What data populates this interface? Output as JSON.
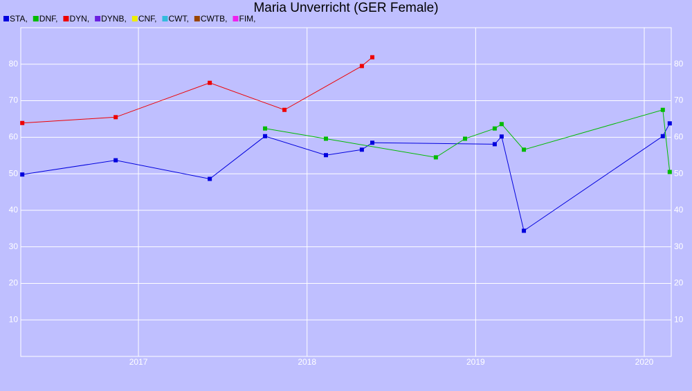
{
  "chart_data": {
    "type": "line",
    "title": "Maria Unverricht (GER Female)",
    "xlim": [
      2016.302,
      2020.16
    ],
    "xticks": [
      2017,
      2018,
      2019,
      2020
    ],
    "ylim": [
      0,
      90
    ],
    "yticks": [
      10,
      20,
      30,
      40,
      50,
      60,
      70,
      80
    ],
    "grid": true,
    "series": [
      {
        "name": "STA,",
        "color": "#0000dd",
        "x": [
          2016.311,
          2016.865,
          2017.423,
          2017.751,
          2018.112,
          2018.325,
          2018.387,
          2019.113,
          2019.154,
          2019.286,
          2020.11,
          2020.151
        ],
        "values": [
          49.8,
          53.7,
          48.6,
          60.3,
          55.1,
          56.6,
          58.5,
          58.1,
          60.2,
          34.4,
          60.3,
          63.8
        ]
      },
      {
        "name": "DNF,",
        "color": "#00bb00",
        "x": [
          2017.751,
          2018.112,
          2018.764,
          2018.937,
          2019.113,
          2019.154,
          2019.286,
          2020.11,
          2020.151
        ],
        "values": [
          62.4,
          59.6,
          54.5,
          59.6,
          62.4,
          63.6,
          56.6,
          67.5,
          50.5
        ]
      },
      {
        "name": "DYN,",
        "color": "#ee0000",
        "x": [
          2016.311,
          2016.865,
          2017.423,
          2017.866,
          2018.325,
          2018.387
        ],
        "values": [
          63.9,
          65.5,
          74.9,
          67.5,
          79.5,
          81.9
        ]
      },
      {
        "name": "DYNB,",
        "color": "#6a1fe0",
        "x": [],
        "values": []
      },
      {
        "name": "CNF,",
        "color": "#eeee00",
        "x": [],
        "values": []
      },
      {
        "name": "CWT,",
        "color": "#33bbdd",
        "x": [],
        "values": []
      },
      {
        "name": "CWTB,",
        "color": "#994400",
        "x": [],
        "values": []
      },
      {
        "name": "FIM,",
        "color": "#ee22ee",
        "x": [],
        "values": []
      }
    ]
  }
}
